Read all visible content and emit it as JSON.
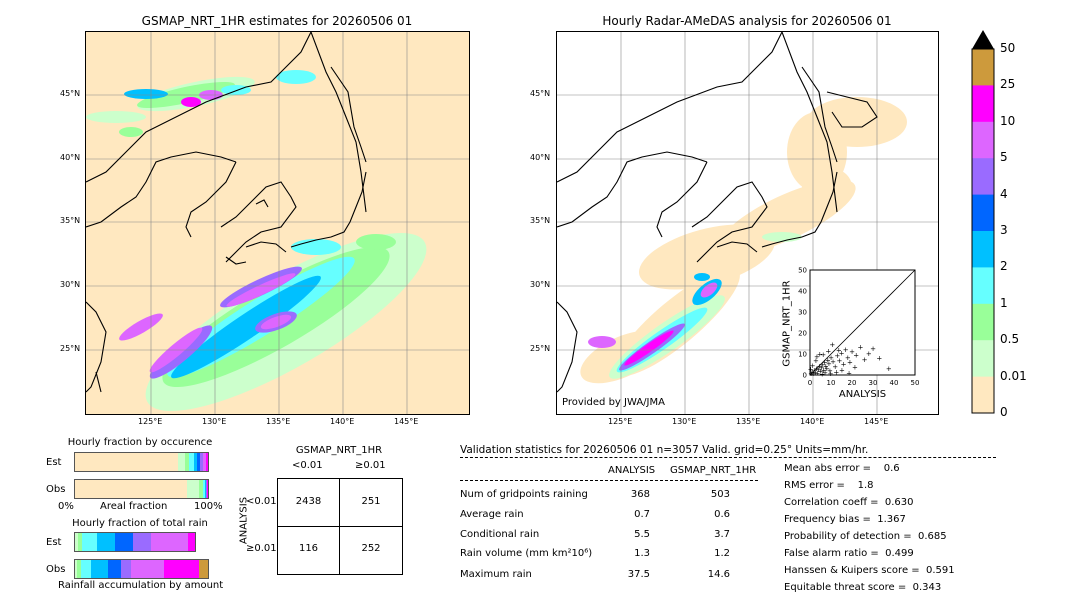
{
  "left_panel": {
    "title": "GSMAP_NRT_1HR estimates for 20260506 01",
    "lat_labels": [
      "45°N",
      "40°N",
      "35°N",
      "30°N",
      "25°N"
    ],
    "lon_labels": [
      "125°E",
      "130°E",
      "135°E",
      "140°E",
      "145°E"
    ]
  },
  "right_panel": {
    "title": "Hourly Radar-AMeDAS analysis for 20260506 01",
    "lat_labels": [
      "45°N",
      "40°N",
      "35°N",
      "30°N",
      "25°N"
    ],
    "lon_labels": [
      "125°E",
      "130°E",
      "135°E",
      "140°E",
      "145°E"
    ],
    "credit": "Provided by JWA/JMA"
  },
  "colorbar": {
    "labels": [
      "50",
      "25",
      "10",
      "5",
      "4",
      "3",
      "2",
      "1",
      "0.5",
      "0.01",
      "0"
    ],
    "colors": [
      "#cd9a3c",
      "#ff00ff",
      "#dd66ff",
      "#9a6bff",
      "#0066ff",
      "#00c0ff",
      "#66ffff",
      "#99ff99",
      "#ccffcc",
      "#ffe8c0"
    ]
  },
  "fraction_occurrence": {
    "title": "Hourly fraction by occurence",
    "row_labels": [
      "Est",
      "Obs"
    ],
    "axis_left": "0%",
    "axis_mid": "Areal fraction",
    "axis_right": "100%"
  },
  "fraction_total": {
    "title": "Hourly fraction of total rain",
    "row_labels": [
      "Est",
      "Obs"
    ],
    "axis_label": "Rainfall accumulation by amount"
  },
  "contingency": {
    "title": "GSMAP_NRT_1HR",
    "col_labels": [
      "<0.01",
      "≥0.01"
    ],
    "row_axis": "ANALYSIS",
    "row_labels": [
      "<0.01",
      "≥0.01"
    ],
    "cells": [
      "2438",
      "251",
      "116",
      "252"
    ]
  },
  "validation": {
    "header": "Validation statistics for 20260506 01  n=3057 Valid. grid=0.25° Units=mm/hr.",
    "col_analysis": "ANALYSIS",
    "col_gsmap": "GSMAP_NRT_1HR",
    "rows": [
      {
        "label": "Num of gridpoints raining",
        "analysis": "368",
        "gsmap": "503"
      },
      {
        "label": "Average rain",
        "analysis": "0.7",
        "gsmap": "0.6"
      },
      {
        "label": "Conditional rain",
        "analysis": "5.5",
        "gsmap": "3.7"
      },
      {
        "label": "Rain volume (mm km²10⁶)",
        "analysis": "1.3",
        "gsmap": "1.2"
      },
      {
        "label": "Maximum rain",
        "analysis": "37.5",
        "gsmap": "14.6"
      }
    ],
    "scores": [
      "Mean abs error =    0.6",
      "RMS error =    1.8",
      "Correlation coeff =  0.630",
      "Frequency bias =  1.367",
      "Probability of detection =  0.685",
      "False alarm ratio =  0.499",
      "Hanssen & Kuipers score =  0.591",
      "Equitable threat score =  0.343"
    ]
  },
  "chart_data": {
    "type": "scatter",
    "xlabel": "ANALYSIS",
    "ylabel": "GSMAP_NRT_1HR",
    "xlim": [
      0,
      50
    ],
    "ylim": [
      0,
      50
    ],
    "x_ticks": [
      "0",
      "10",
      "20",
      "30",
      "40",
      "50"
    ],
    "y_ticks": [
      "0",
      "10",
      "20",
      "30",
      "40",
      "50"
    ],
    "points": [
      [
        0.5,
        0.8
      ],
      [
        1,
        1.5
      ],
      [
        1.5,
        0.6
      ],
      [
        2,
        2.2
      ],
      [
        2.5,
        1.2
      ],
      [
        3,
        3.1
      ],
      [
        3.5,
        0.9
      ],
      [
        4,
        2.6
      ],
      [
        4.5,
        4.2
      ],
      [
        5,
        1.8
      ],
      [
        5.5,
        3.5
      ],
      [
        6,
        5.1
      ],
      [
        6.5,
        2.4
      ],
      [
        7,
        6.2
      ],
      [
        7.5,
        4.4
      ],
      [
        8,
        3.0
      ],
      [
        8.5,
        7.1
      ],
      [
        9,
        5.5
      ],
      [
        9.5,
        2.1
      ],
      [
        10,
        8.3
      ],
      [
        11,
        6.4
      ],
      [
        12,
        4.1
      ],
      [
        13,
        9.2
      ],
      [
        14,
        7.0
      ],
      [
        15,
        10.5
      ],
      [
        16,
        5.2
      ],
      [
        17,
        12.1
      ],
      [
        18,
        8.4
      ],
      [
        19,
        6.1
      ],
      [
        20,
        11.2
      ],
      [
        22,
        9.5
      ],
      [
        24,
        13.4
      ],
      [
        26,
        7.3
      ],
      [
        28,
        10.2
      ],
      [
        30,
        12.6
      ],
      [
        33,
        8.1
      ],
      [
        37.5,
        3.2
      ],
      [
        1.2,
        4.5
      ],
      [
        2.8,
        6.8
      ],
      [
        3.3,
        8.9
      ],
      [
        4.7,
        10.1
      ],
      [
        0.3,
        2.9
      ],
      [
        5.8,
        0.4
      ],
      [
        7.2,
        1.1
      ],
      [
        9.8,
        0.7
      ],
      [
        12.5,
        1.4
      ],
      [
        15.2,
        2.3
      ],
      [
        18.6,
        0.9
      ],
      [
        21.4,
        3.8
      ],
      [
        6.3,
        9.8
      ],
      [
        8.7,
        11.4
      ],
      [
        10.6,
        14.6
      ],
      [
        13.7,
        11.8
      ]
    ]
  }
}
